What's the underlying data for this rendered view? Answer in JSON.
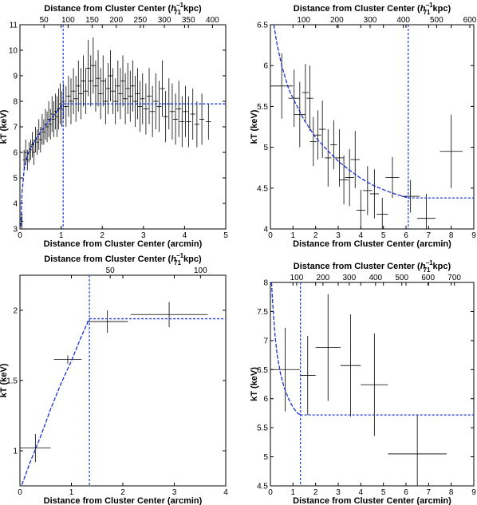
{
  "charts": [
    {
      "type": "scatter",
      "xlabel": "Distance from Cluster Center (arcmin)",
      "ylabel": "kT (keV)",
      "top_xlabel_prefix": "Distance from Cluster Center (",
      "top_xlabel_h": "h",
      "top_xlabel_sup": "−1",
      "top_xlabel_sub": "71",
      "top_xlabel_suffix": " kpc)",
      "xlim": [
        0,
        5
      ],
      "ylim": [
        3,
        11
      ],
      "xticks": [
        0,
        1,
        2,
        3,
        4,
        5
      ],
      "xtick_labels": [
        "0",
        "1",
        "2",
        "3",
        "4",
        "5"
      ],
      "yticks": [
        3,
        4,
        5,
        6,
        7,
        8,
        9,
        10,
        11
      ],
      "ytick_labels": [
        "3",
        "4",
        "5",
        "6",
        "7",
        "8",
        "9",
        "10",
        "11"
      ],
      "top_ticks": [
        50,
        100,
        150,
        200,
        250,
        300,
        350,
        400
      ],
      "top_tick_labels": [
        "50",
        "100",
        "150",
        "200",
        "250",
        "300",
        "350",
        "400"
      ],
      "top_scale": 85.5,
      "points": [
        [
          0.05,
          3.3,
          0.03,
          0.3
        ],
        [
          0.1,
          5.7,
          0.03,
          0.4
        ],
        [
          0.14,
          6.0,
          0.03,
          0.5
        ],
        [
          0.18,
          5.7,
          0.03,
          0.4
        ],
        [
          0.22,
          6.0,
          0.03,
          0.4
        ],
        [
          0.26,
          6.1,
          0.03,
          0.4
        ],
        [
          0.3,
          6.3,
          0.03,
          0.5
        ],
        [
          0.34,
          6.0,
          0.03,
          0.5
        ],
        [
          0.38,
          6.5,
          0.03,
          0.5
        ],
        [
          0.42,
          6.4,
          0.03,
          0.5
        ],
        [
          0.46,
          6.7,
          0.03,
          0.6
        ],
        [
          0.5,
          6.5,
          0.03,
          0.5
        ],
        [
          0.54,
          6.9,
          0.03,
          0.6
        ],
        [
          0.58,
          6.8,
          0.03,
          0.5
        ],
        [
          0.62,
          7.1,
          0.03,
          0.6
        ],
        [
          0.66,
          7.0,
          0.03,
          0.6
        ],
        [
          0.7,
          7.3,
          0.03,
          0.7
        ],
        [
          0.74,
          7.1,
          0.03,
          0.6
        ],
        [
          0.78,
          7.5,
          0.03,
          0.7
        ],
        [
          0.82,
          7.3,
          0.03,
          0.7
        ],
        [
          0.86,
          7.6,
          0.03,
          0.7
        ],
        [
          0.9,
          7.4,
          0.03,
          0.8
        ],
        [
          0.94,
          7.7,
          0.03,
          0.8
        ],
        [
          0.98,
          7.9,
          0.03,
          0.8
        ],
        [
          1.02,
          7.7,
          0.03,
          0.7
        ],
        [
          1.06,
          8.0,
          0.03,
          0.7
        ],
        [
          1.12,
          7.8,
          0.05,
          0.8
        ],
        [
          1.18,
          8.2,
          0.05,
          0.8
        ],
        [
          1.24,
          8.0,
          0.05,
          0.9
        ],
        [
          1.3,
          8.4,
          0.05,
          0.9
        ],
        [
          1.36,
          8.1,
          0.05,
          0.9
        ],
        [
          1.42,
          8.6,
          0.05,
          1.0
        ],
        [
          1.48,
          8.3,
          0.05,
          1.0
        ],
        [
          1.54,
          8.8,
          0.05,
          1.0
        ],
        [
          1.6,
          8.4,
          0.05,
          0.9
        ],
        [
          1.66,
          9.3,
          0.05,
          1.1
        ],
        [
          1.72,
          8.8,
          0.05,
          1.0
        ],
        [
          1.78,
          9.4,
          0.05,
          1.1
        ],
        [
          1.84,
          8.6,
          0.05,
          1.0
        ],
        [
          1.9,
          8.9,
          0.05,
          1.1
        ],
        [
          1.96,
          8.3,
          0.05,
          1.0
        ],
        [
          2.02,
          8.8,
          0.05,
          1.0
        ],
        [
          2.08,
          8.0,
          0.05,
          0.9
        ],
        [
          2.14,
          8.5,
          0.05,
          1.0
        ],
        [
          2.2,
          9.0,
          0.05,
          1.0
        ],
        [
          2.26,
          8.4,
          0.05,
          0.9
        ],
        [
          2.32,
          8.0,
          0.05,
          0.9
        ],
        [
          2.38,
          8.6,
          0.05,
          1.0
        ],
        [
          2.44,
          8.3,
          0.05,
          1.0
        ],
        [
          2.5,
          8.8,
          0.05,
          1.0
        ],
        [
          2.56,
          8.1,
          0.05,
          1.0
        ],
        [
          2.62,
          8.5,
          0.05,
          1.0
        ],
        [
          2.68,
          8.2,
          0.05,
          1.0
        ],
        [
          2.74,
          8.6,
          0.05,
          1.0
        ],
        [
          2.8,
          8.0,
          0.05,
          1.0
        ],
        [
          2.86,
          8.3,
          0.05,
          1.0
        ],
        [
          2.92,
          7.8,
          0.05,
          1.0
        ],
        [
          2.98,
          8.1,
          0.05,
          1.0
        ],
        [
          3.06,
          7.7,
          0.06,
          1.0
        ],
        [
          3.14,
          8.2,
          0.06,
          1.1
        ],
        [
          3.22,
          7.6,
          0.06,
          1.0
        ],
        [
          3.3,
          8.0,
          0.06,
          1.1
        ],
        [
          3.38,
          7.8,
          0.06,
          1.0
        ],
        [
          3.46,
          8.5,
          0.06,
          1.1
        ],
        [
          3.54,
          7.4,
          0.06,
          1.0
        ],
        [
          3.62,
          7.9,
          0.06,
          1.0
        ],
        [
          3.7,
          7.6,
          0.06,
          1.1
        ],
        [
          3.78,
          7.3,
          0.06,
          1.0
        ],
        [
          3.86,
          7.7,
          0.06,
          1.1
        ],
        [
          3.94,
          7.2,
          0.06,
          1.0
        ],
        [
          4.02,
          7.6,
          0.06,
          1.0
        ],
        [
          4.1,
          7.2,
          0.06,
          1.0
        ],
        [
          4.2,
          7.5,
          0.06,
          1.0
        ],
        [
          4.3,
          7.1,
          0.06,
          0.9
        ],
        [
          4.42,
          7.3,
          0.06,
          1.0
        ],
        [
          4.58,
          7.2,
          0.06,
          0.7
        ]
      ],
      "model_curve": [
        [
          0.02,
          3.1
        ],
        [
          0.05,
          4.4
        ],
        [
          0.1,
          5.3
        ],
        [
          0.15,
          5.7
        ],
        [
          0.2,
          5.95
        ],
        [
          0.3,
          6.3
        ],
        [
          0.4,
          6.55
        ],
        [
          0.5,
          6.8
        ],
        [
          0.6,
          7.0
        ],
        [
          0.7,
          7.2
        ],
        [
          0.8,
          7.4
        ],
        [
          0.9,
          7.6
        ],
        [
          1.0,
          7.8
        ],
        [
          1.05,
          7.9
        ]
      ],
      "plateau": 7.9,
      "break_x": 1.05
    },
    {
      "type": "scatter",
      "xlabel": "Distance from Cluster Center (arcmin)",
      "ylabel": "kT (keV)",
      "top_xlabel_prefix": "Distance from Cluster Center (",
      "top_xlabel_h": "h",
      "top_xlabel_sup": "−1",
      "top_xlabel_sub": "71",
      "top_xlabel_suffix": " kpc)",
      "xlim": [
        0,
        9
      ],
      "ylim": [
        4,
        6.5
      ],
      "xticks": [
        0,
        1,
        2,
        3,
        4,
        5,
        6,
        7,
        8,
        9
      ],
      "xtick_labels": [
        "0",
        "1",
        "2",
        "3",
        "4",
        "5",
        "6",
        "7",
        "8",
        "9"
      ],
      "yticks": [
        4,
        4.5,
        5,
        5.5,
        6,
        6.5
      ],
      "ytick_labels": [
        "4",
        "4.5",
        "5",
        "5.5",
        "6",
        "6.5"
      ],
      "top_ticks": [
        100,
        200,
        300,
        400,
        500,
        600
      ],
      "top_tick_labels": [
        "100",
        "200",
        "300",
        "400",
        "500",
        "600"
      ],
      "top_scale": 68,
      "points": [
        [
          0.5,
          5.75,
          0.5,
          0.4
        ],
        [
          1.05,
          5.6,
          0.25,
          0.35
        ],
        [
          1.3,
          5.4,
          0.25,
          0.4
        ],
        [
          1.55,
          5.67,
          0.15,
          0.35
        ],
        [
          1.75,
          5.6,
          0.15,
          0.4
        ],
        [
          1.9,
          5.07,
          0.15,
          0.3
        ],
        [
          2.1,
          5.15,
          0.15,
          0.3
        ],
        [
          2.3,
          5.22,
          0.15,
          0.35
        ],
        [
          2.55,
          4.87,
          0.15,
          0.35
        ],
        [
          2.8,
          5.03,
          0.15,
          0.3
        ],
        [
          3.05,
          4.87,
          0.2,
          0.35
        ],
        [
          3.25,
          4.6,
          0.2,
          0.3
        ],
        [
          3.5,
          4.63,
          0.2,
          0.35
        ],
        [
          3.75,
          4.85,
          0.2,
          0.35
        ],
        [
          4.0,
          4.23,
          0.2,
          0.25
        ],
        [
          4.3,
          4.47,
          0.2,
          0.3
        ],
        [
          4.6,
          4.43,
          0.2,
          0.3
        ],
        [
          4.95,
          4.18,
          0.25,
          0.2
        ],
        [
          5.4,
          4.63,
          0.3,
          0.25
        ],
        [
          6.2,
          4.4,
          0.4,
          0.2
        ],
        [
          6.9,
          4.13,
          0.4,
          0.3
        ],
        [
          8.0,
          4.95,
          0.5,
          0.45
        ]
      ],
      "model_curve": [
        [
          0.15,
          6.5
        ],
        [
          0.3,
          6.25
        ],
        [
          0.5,
          6.0
        ],
        [
          0.8,
          5.72
        ],
        [
          1.0,
          5.6
        ],
        [
          1.5,
          5.33
        ],
        [
          2.0,
          5.12
        ],
        [
          2.5,
          4.97
        ],
        [
          3.0,
          4.83
        ],
        [
          3.5,
          4.72
        ],
        [
          4.0,
          4.62
        ],
        [
          4.5,
          4.54
        ],
        [
          5.0,
          4.48
        ],
        [
          5.5,
          4.43
        ],
        [
          6.1,
          4.38
        ]
      ],
      "plateau": 4.38,
      "break_x": 6.1
    },
    {
      "type": "scatter",
      "xlabel": "Distance from Cluster Center (arcmin)",
      "ylabel": "kT (keV)",
      "top_xlabel_prefix": "Distance from Cluster Center (",
      "top_xlabel_h": "h",
      "top_xlabel_sup": "−1",
      "top_xlabel_sub": "71",
      "top_xlabel_suffix": " kpc)",
      "xlim": [
        0,
        4
      ],
      "ylim": [
        0.75,
        2.25
      ],
      "xticks": [
        0,
        1,
        2,
        3,
        4
      ],
      "xtick_labels": [
        "0",
        "1",
        "2",
        "3",
        "4"
      ],
      "yticks": [
        1,
        1.5,
        2
      ],
      "ytick_labels": [
        "1",
        "1.5",
        "2"
      ],
      "top_ticks": [
        50,
        100
      ],
      "top_tick_labels": [
        "50",
        "100"
      ],
      "top_scale": 28.5,
      "points": [
        [
          0.3,
          1.02,
          0.3,
          0.1
        ],
        [
          0.93,
          1.65,
          0.27,
          0.03
        ],
        [
          1.7,
          1.92,
          0.4,
          0.08
        ],
        [
          2.9,
          1.97,
          0.75,
          0.09
        ]
      ],
      "model_curve": [
        [
          0.0,
          0.72
        ],
        [
          0.2,
          0.92
        ],
        [
          0.4,
          1.1
        ],
        [
          0.6,
          1.3
        ],
        [
          0.8,
          1.48
        ],
        [
          1.0,
          1.64
        ],
        [
          1.2,
          1.82
        ],
        [
          1.35,
          1.94
        ]
      ],
      "plateau": 1.94,
      "break_x": 1.35
    },
    {
      "type": "scatter",
      "xlabel": "Distance from Cluster Center (arcmin)",
      "ylabel": "kT (keV)",
      "top_xlabel_prefix": "Distance from Cluster Center (",
      "top_xlabel_h": "h",
      "top_xlabel_sup": "−1",
      "top_xlabel_sub": "71",
      "top_xlabel_suffix": " kpc)",
      "xlim": [
        0,
        9
      ],
      "ylim": [
        4.5,
        8
      ],
      "xticks": [
        0,
        1,
        2,
        3,
        4,
        5,
        6,
        7,
        8,
        9
      ],
      "xtick_labels": [
        "0",
        "1",
        "2",
        "3",
        "4",
        "5",
        "6",
        "7",
        "8",
        "9"
      ],
      "yticks": [
        4.5,
        5,
        5.5,
        6,
        6.5,
        7,
        7.5,
        8
      ],
      "ytick_labels": [
        "4.5",
        "5",
        "5.5",
        "6",
        "6.5",
        "7",
        "7.5",
        "8"
      ],
      "top_ticks": [
        100,
        200,
        300,
        400,
        500,
        600,
        700
      ],
      "top_tick_labels": [
        "100",
        "200",
        "300",
        "400",
        "500",
        "600",
        "700"
      ],
      "top_scale": 86,
      "points": [
        [
          0.65,
          6.5,
          0.65,
          0.72
        ],
        [
          1.65,
          6.4,
          0.35,
          0.68
        ],
        [
          2.55,
          6.88,
          0.55,
          0.92
        ],
        [
          3.55,
          6.57,
          0.45,
          0.88
        ],
        [
          4.6,
          6.24,
          0.6,
          0.88
        ],
        [
          6.5,
          5.05,
          1.3,
          0.68
        ]
      ],
      "model_curve": [
        [
          0.05,
          8.0
        ],
        [
          0.1,
          7.65
        ],
        [
          0.2,
          7.1
        ],
        [
          0.3,
          6.75
        ],
        [
          0.45,
          6.42
        ],
        [
          0.6,
          6.2
        ],
        [
          0.8,
          6.0
        ],
        [
          1.0,
          5.85
        ],
        [
          1.2,
          5.75
        ],
        [
          1.33,
          5.72
        ]
      ],
      "plateau": 5.72,
      "break_x": 1.33
    }
  ]
}
